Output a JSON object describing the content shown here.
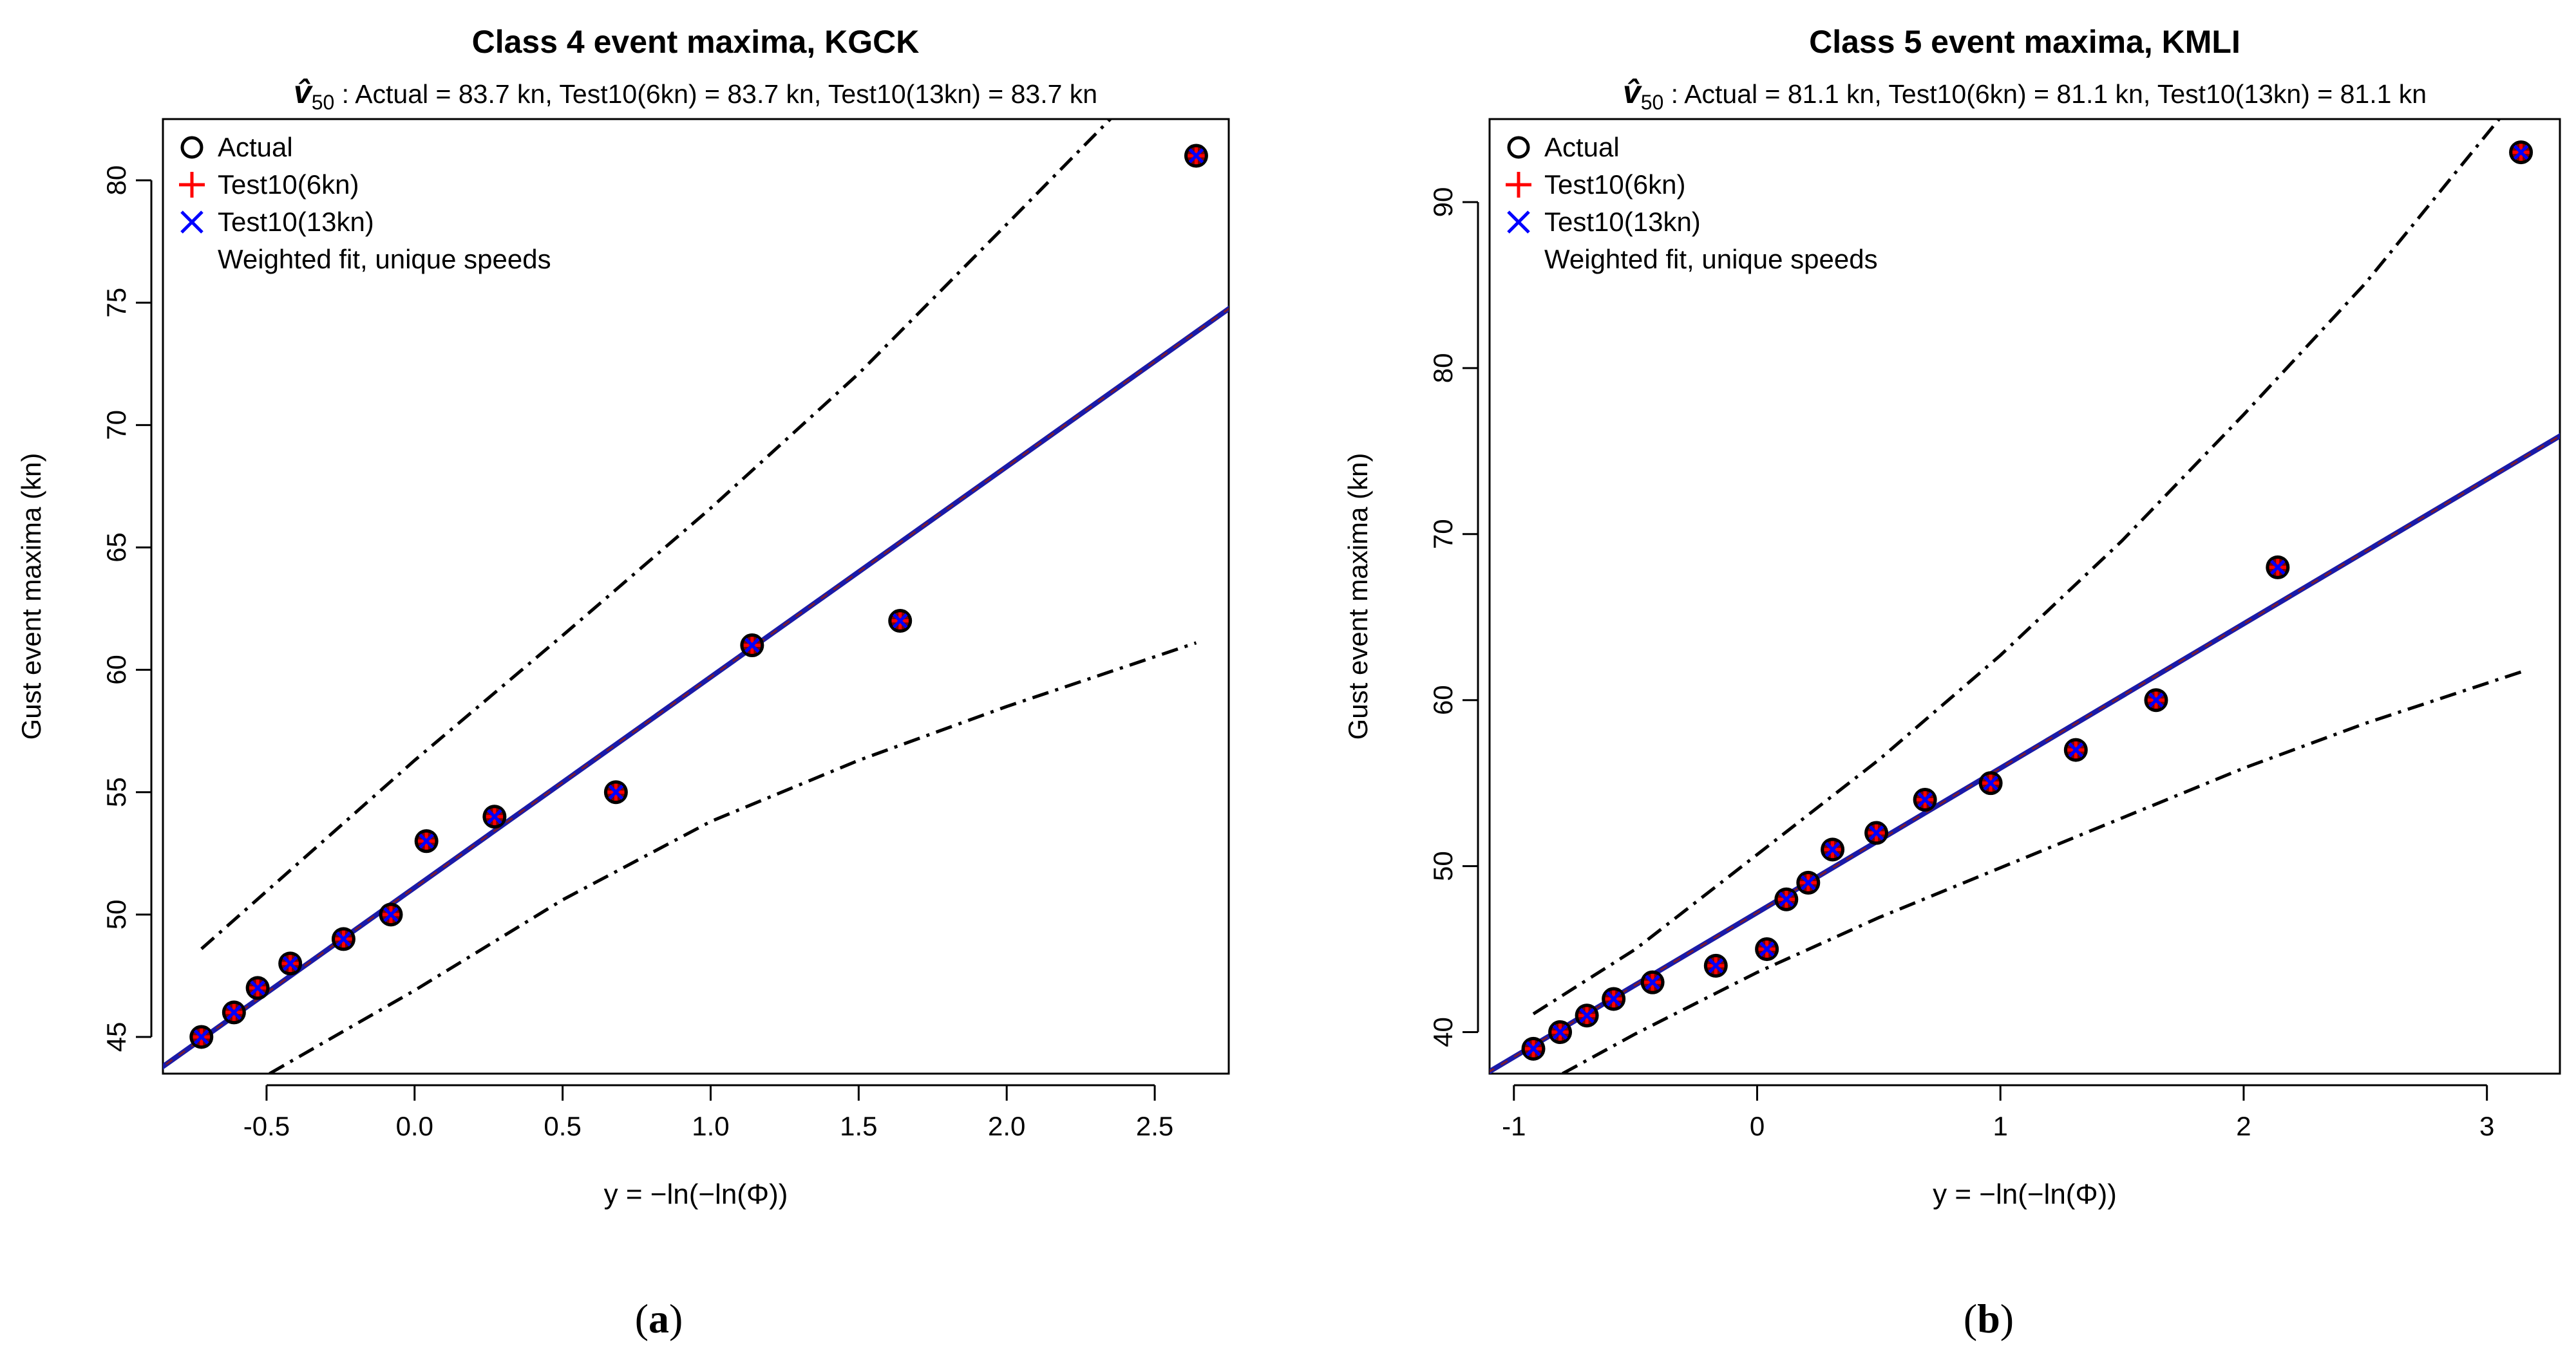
{
  "figure": {
    "panels": [
      "a",
      "b"
    ]
  },
  "legend_labels": {
    "actual": "Actual",
    "test6": "Test10(6kn)",
    "test13": "Test10(13kn)",
    "fit": "Weighted fit, unique speeds"
  },
  "colors": {
    "test6": "#ff0000",
    "test13": "#0000ff",
    "fit_line": "#1a1aa8",
    "confidence": "#000000",
    "marker_fill": "#800000"
  },
  "chart_data": [
    {
      "type": "scatter",
      "panel_label": "a",
      "title": "Class 4 event maxima, KGCK",
      "subtitle": {
        "symbol": "v̂",
        "subscript": "50",
        "text": ": Actual = 83.7 kn, Test10(6kn) = 83.7 kn, Test10(13kn) = 83.7 kn"
      },
      "xlabel": "y = −ln(−ln(Φ))",
      "ylabel": "Gust event maxima (kn)",
      "xlim": [
        -0.85,
        2.75
      ],
      "ylim": [
        43.5,
        82.5
      ],
      "xticks": [
        -0.5,
        0.0,
        0.5,
        1.0,
        1.5,
        2.0,
        2.5
      ],
      "xtick_labels": [
        "-0.5",
        "0.0",
        "0.5",
        "1.0",
        "1.5",
        "2.0",
        "2.5"
      ],
      "yticks": [
        45,
        50,
        55,
        60,
        65,
        70,
        75,
        80
      ],
      "ytick_labels": [
        "45",
        "50",
        "55",
        "60",
        "65",
        "70",
        "75",
        "80"
      ],
      "points": [
        {
          "x": -0.72,
          "y": 45
        },
        {
          "x": -0.61,
          "y": 46
        },
        {
          "x": -0.53,
          "y": 47
        },
        {
          "x": -0.42,
          "y": 48
        },
        {
          "x": -0.24,
          "y": 49
        },
        {
          "x": -0.08,
          "y": 50
        },
        {
          "x": 0.04,
          "y": 53
        },
        {
          "x": 0.27,
          "y": 54
        },
        {
          "x": 0.68,
          "y": 55
        },
        {
          "x": 1.14,
          "y": 61
        },
        {
          "x": 1.64,
          "y": 62
        },
        {
          "x": 2.64,
          "y": 81
        }
      ],
      "fit": {
        "intercept": 51.1,
        "slope": 8.6
      },
      "upper_ci": [
        [
          -0.72,
          48.6
        ],
        [
          0.0,
          56.3
        ],
        [
          0.5,
          61.4
        ],
        [
          1.0,
          66.6
        ],
        [
          1.5,
          72.1
        ],
        [
          2.0,
          78.2
        ],
        [
          2.35,
          82.5
        ]
      ],
      "lower_ci": [
        [
          -0.49,
          43.5
        ],
        [
          0.0,
          46.9
        ],
        [
          0.5,
          50.6
        ],
        [
          1.0,
          53.8
        ],
        [
          1.5,
          56.3
        ],
        [
          2.0,
          58.5
        ],
        [
          2.64,
          61.1
        ]
      ],
      "legend_position": "top-left"
    },
    {
      "type": "scatter",
      "panel_label": "b",
      "title": "Class 5 event maxima, KMLI",
      "subtitle": {
        "symbol": "v̂",
        "subscript": "50",
        "text": ": Actual = 81.1 kn, Test10(6kn) = 81.1 kn, Test10(13kn) = 81.1 kn"
      },
      "xlabel": "y = −ln(−ln(Φ))",
      "ylabel": "Gust event maxima (kn)",
      "xlim": [
        -1.1,
        3.3
      ],
      "ylim": [
        37.5,
        95.0
      ],
      "xticks": [
        -1,
        0,
        1,
        2,
        3
      ],
      "xtick_labels": [
        "-1",
        "0",
        "1",
        "2",
        "3"
      ],
      "yticks": [
        40,
        50,
        60,
        70,
        80,
        90
      ],
      "ytick_labels": [
        "40",
        "50",
        "60",
        "70",
        "80",
        "90"
      ],
      "points": [
        {
          "x": -0.92,
          "y": 39
        },
        {
          "x": -0.81,
          "y": 40
        },
        {
          "x": -0.7,
          "y": 41
        },
        {
          "x": -0.59,
          "y": 42
        },
        {
          "x": -0.43,
          "y": 43
        },
        {
          "x": -0.17,
          "y": 44
        },
        {
          "x": 0.04,
          "y": 45
        },
        {
          "x": 0.12,
          "y": 48
        },
        {
          "x": 0.21,
          "y": 49
        },
        {
          "x": 0.31,
          "y": 51
        },
        {
          "x": 0.49,
          "y": 52
        },
        {
          "x": 0.69,
          "y": 54
        },
        {
          "x": 0.96,
          "y": 55
        },
        {
          "x": 1.31,
          "y": 57
        },
        {
          "x": 1.64,
          "y": 60
        },
        {
          "x": 2.14,
          "y": 68
        },
        {
          "x": 3.14,
          "y": 93
        }
      ],
      "fit": {
        "intercept": 47.2,
        "slope": 8.7
      },
      "upper_ci": [
        [
          -0.92,
          41.1
        ],
        [
          -0.5,
          45.0
        ],
        [
          0.0,
          50.7
        ],
        [
          0.5,
          56.4
        ],
        [
          1.0,
          62.7
        ],
        [
          1.5,
          69.6
        ],
        [
          2.0,
          77.2
        ],
        [
          2.5,
          85.1
        ],
        [
          3.05,
          95.0
        ]
      ],
      "lower_ci": [
        [
          -0.8,
          37.5
        ],
        [
          -0.5,
          39.9
        ],
        [
          0.0,
          43.6
        ],
        [
          0.5,
          46.9
        ],
        [
          1.0,
          49.9
        ],
        [
          1.5,
          52.9
        ],
        [
          2.0,
          55.9
        ],
        [
          2.5,
          58.6
        ],
        [
          3.14,
          61.7
        ]
      ],
      "legend_position": "top-left"
    }
  ]
}
